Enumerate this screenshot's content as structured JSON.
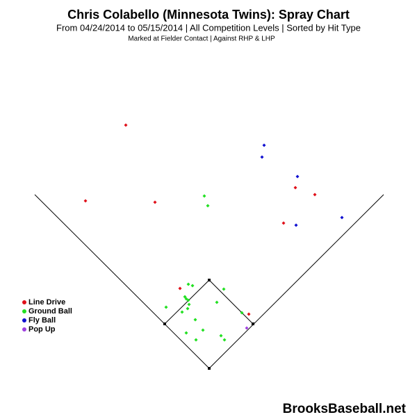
{
  "chart_data": {
    "type": "scatter",
    "title": "Chris Colabello (Minnesota Twins): Spray Chart",
    "subtitle": "From 04/24/2014 to 05/15/2014 | All Competition Levels | Sorted by Hit Type",
    "note": "Marked at Fielder Contact |   Against RHP & LHP",
    "watermark": "BrooksBaseball.net",
    "xlim": [
      -301,
      299
    ],
    "ylim": [
      -70,
      530
    ],
    "legend": "lower left",
    "series": [
      {
        "name": "Line Drive",
        "color": "#e0101a",
        "x": [
          -120,
          -178,
          -78,
          124,
          152,
          107,
          -42,
          57
        ],
        "values": [
          350,
          241,
          239,
          260,
          250,
          209,
          115,
          78
        ]
      },
      {
        "name": "Ground Ball",
        "color": "#22e022",
        "x": [
          -7,
          -2,
          -30,
          -24,
          21,
          -35,
          -33,
          -30,
          -62,
          -29,
          11,
          -31,
          -39,
          47,
          -20,
          -9,
          -33,
          17,
          -19,
          22
        ],
        "values": [
          248,
          234,
          121,
          119,
          114,
          103,
          100,
          98,
          88,
          92,
          95,
          86,
          81,
          80,
          70,
          55,
          51,
          47,
          41,
          41
        ]
      },
      {
        "name": "Fly Ball",
        "color": "#1010d0",
        "x": [
          79,
          76,
          127,
          125,
          191
        ],
        "values": [
          321,
          304,
          276,
          206,
          217
        ]
      },
      {
        "name": "Pop Up",
        "color": "#a040e0",
        "x": [
          54
        ],
        "values": [
          58
        ]
      }
    ]
  }
}
